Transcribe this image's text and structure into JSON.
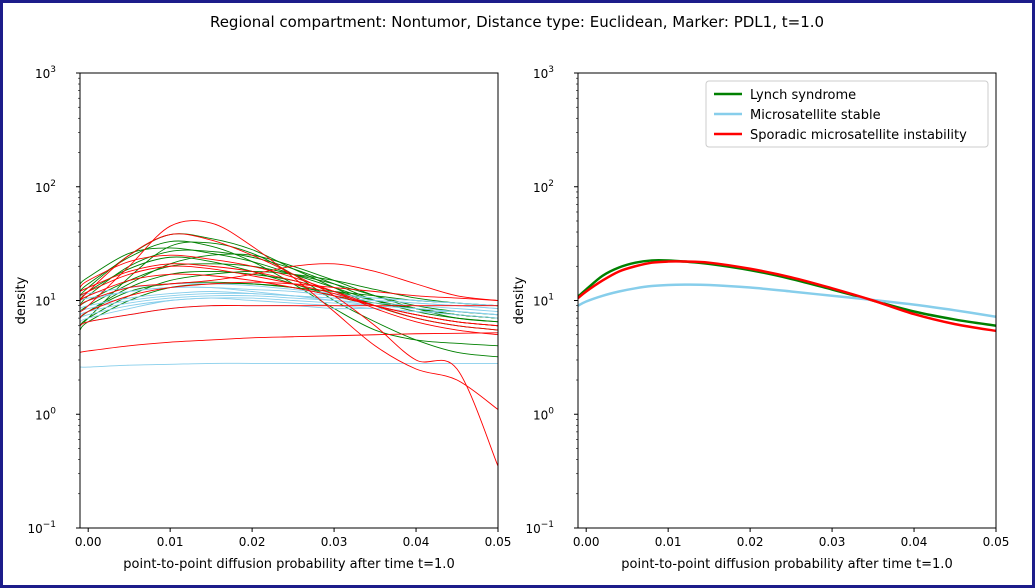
{
  "figure": {
    "title": "Regional compartment: Nontumor, Distance type: Euclidean, Marker: PDL1, t=1.0"
  },
  "colors": {
    "Lynch syndrome": "#008000",
    "Microsatellite stable": "#87ceeb",
    "Sporadic microsatellite instability": "#ff0000",
    "frame": "#1c1c8a"
  },
  "chart_data": [
    {
      "type": "line",
      "panel": "left",
      "xlabel": "point-to-point diffusion probability after time t=1.0",
      "ylabel": "density",
      "xlim": [
        -0.001,
        0.05
      ],
      "ylim": [
        0.1,
        1000
      ],
      "yscale": "log",
      "x": [
        -0.001,
        0.0,
        0.005,
        0.01,
        0.015,
        0.02,
        0.025,
        0.03,
        0.035,
        0.04,
        0.045,
        0.05
      ],
      "xticks": [
        "0.00",
        "0.01",
        "0.02",
        "0.03",
        "0.04",
        "0.05"
      ],
      "yticks": [
        "10",
        "10",
        "10",
        "10",
        "10"
      ],
      "ytick_exponents": [
        "−1",
        "0",
        "1",
        "2",
        "3"
      ],
      "grid": false,
      "legend": null,
      "series": [
        {
          "group": "Lynch syndrome",
          "values": [
            6.0,
            7.0,
            16,
            30,
            32,
            26,
            17,
            10,
            6.5,
            4.5,
            3.5,
            3.2
          ]
        },
        {
          "group": "Lynch syndrome",
          "values": [
            11,
            13,
            25,
            38,
            35,
            28,
            19,
            13,
            9,
            7,
            6,
            5.5
          ]
        },
        {
          "group": "Lynch syndrome",
          "values": [
            9,
            11,
            20,
            27,
            27,
            24,
            19,
            14,
            10,
            8,
            7,
            6.5
          ]
        },
        {
          "group": "Lynch syndrome",
          "values": [
            14,
            16,
            26,
            29,
            26,
            22,
            17,
            13,
            10,
            8.5,
            7.5,
            7
          ]
        },
        {
          "group": "Lynch syndrome",
          "values": [
            7,
            8,
            13,
            17,
            18,
            17,
            15,
            12,
            10,
            8.5,
            7.5,
            7
          ]
        },
        {
          "group": "Lynch syndrome",
          "values": [
            5.5,
            6.5,
            10,
            13,
            14,
            14,
            13,
            11,
            9.5,
            8.5,
            7.5,
            7
          ]
        },
        {
          "group": "Lynch syndrome",
          "values": [
            8,
            9,
            14,
            21,
            25,
            25,
            20,
            15,
            11,
            8.5,
            7,
            6.5
          ]
        },
        {
          "group": "Lynch syndrome",
          "values": [
            10,
            12,
            19,
            24,
            22,
            18,
            14,
            11,
            9,
            7.5,
            6.5,
            6
          ]
        },
        {
          "group": "Lynch syndrome",
          "values": [
            6,
            7,
            11,
            15,
            17,
            18,
            17,
            15,
            12.5,
            10.5,
            9.5,
            9
          ]
        },
        {
          "group": "Lynch syndrome",
          "values": [
            12,
            14,
            24,
            33,
            30,
            22,
            14,
            8.5,
            5.5,
            4.5,
            4.2,
            4
          ]
        },
        {
          "group": "Lynch syndrome",
          "values": [
            9,
            10,
            15,
            20,
            21,
            20,
            17,
            14,
            11,
            9,
            8,
            7.5
          ]
        },
        {
          "group": "Lynch syndrome",
          "values": [
            7,
            8,
            12,
            14,
            14.5,
            14,
            13,
            12,
            11,
            10,
            9.5,
            9
          ]
        },
        {
          "group": "Microsatellite stable",
          "values": [
            2.6,
            2.6,
            2.7,
            2.75,
            2.8,
            2.8,
            2.8,
            2.8,
            2.8,
            2.8,
            2.8,
            2.8
          ]
        },
        {
          "group": "Microsatellite stable",
          "values": [
            6.5,
            7,
            8.5,
            10,
            10.5,
            10.5,
            10,
            9.5,
            9,
            8.5,
            8,
            7.5
          ]
        },
        {
          "group": "Microsatellite stable",
          "values": [
            8,
            8.5,
            10,
            11,
            11.5,
            11.5,
            11,
            10.5,
            10,
            9.5,
            9,
            8.5
          ]
        },
        {
          "group": "Microsatellite stable",
          "values": [
            9,
            10,
            12,
            13,
            13,
            12.5,
            12,
            11,
            10.5,
            10,
            9.5,
            9
          ]
        },
        {
          "group": "Microsatellite stable",
          "values": [
            7,
            7.5,
            9,
            10,
            10.5,
            10,
            9.5,
            9,
            8.5,
            8,
            7.5,
            7
          ]
        },
        {
          "group": "Microsatellite stable",
          "values": [
            10,
            10.5,
            12,
            13,
            13,
            12,
            11,
            10,
            9,
            8.5,
            8,
            7.5
          ]
        },
        {
          "group": "Microsatellite stable",
          "values": [
            6,
            6.5,
            7.5,
            8.5,
            9,
            9,
            9,
            8.5,
            8.5,
            8,
            8,
            7.5
          ]
        },
        {
          "group": "Microsatellite stable",
          "values": [
            8.5,
            9,
            10.5,
            11.5,
            12,
            11.5,
            11,
            10.5,
            10,
            9.5,
            9,
            8.5
          ]
        },
        {
          "group": "Microsatellite stable",
          "values": [
            7.5,
            8,
            9.5,
            10.5,
            11,
            11,
            10.5,
            10,
            9.5,
            9,
            8.5,
            8
          ]
        },
        {
          "group": "Microsatellite stable",
          "values": [
            11,
            11.5,
            13,
            14,
            14,
            13.5,
            12.5,
            11.5,
            10.5,
            10,
            9.5,
            9
          ]
        },
        {
          "group": "Sporadic microsatellite instability",
          "values": [
            3.5,
            3.6,
            4.0,
            4.3,
            4.5,
            4.7,
            4.8,
            4.9,
            5.0,
            5.1,
            5.15,
            5.2
          ]
        },
        {
          "group": "Sporadic microsatellite instability",
          "values": [
            8,
            9,
            20,
            45,
            48,
            30,
            16,
            8,
            4,
            2.5,
            2,
            1.1
          ]
        },
        {
          "group": "Sporadic microsatellite instability",
          "values": [
            10,
            12,
            25,
            38,
            34,
            25,
            17,
            11,
            6,
            3,
            2.5,
            0.35
          ]
        },
        {
          "group": "Sporadic microsatellite instability",
          "values": [
            12,
            13,
            18,
            21,
            20,
            18,
            15,
            12,
            9,
            7,
            6,
            5.5
          ]
        },
        {
          "group": "Sporadic microsatellite instability",
          "values": [
            6,
            6.5,
            7.5,
            8.5,
            9,
            9,
            9,
            9,
            9,
            9,
            9,
            9
          ]
        },
        {
          "group": "Sporadic microsatellite instability",
          "values": [
            9,
            10,
            13,
            14,
            15,
            17,
            20,
            21,
            18,
            14,
            11,
            10
          ]
        },
        {
          "group": "Sporadic microsatellite instability",
          "values": [
            13,
            15,
            22,
            25,
            23,
            20,
            16,
            12,
            8.5,
            6.5,
            5.5,
            5
          ]
        },
        {
          "group": "Sporadic microsatellite instability",
          "values": [
            7,
            8,
            11,
            13,
            14,
            14.5,
            14,
            13,
            12,
            11,
            10.5,
            10
          ]
        },
        {
          "group": "Sporadic microsatellite instability",
          "values": [
            10,
            11,
            15,
            17,
            16.5,
            15,
            13,
            11,
            9,
            7.5,
            6.5,
            6
          ]
        },
        {
          "group": "Sporadic microsatellite instability",
          "values": [
            11,
            12,
            17,
            20,
            19,
            16.5,
            14,
            11.5,
            9,
            7.5,
            6.5,
            6
          ]
        }
      ]
    },
    {
      "type": "line",
      "panel": "right",
      "xlabel": "point-to-point diffusion probability after time t=1.0",
      "ylabel": "density",
      "xlim": [
        -0.001,
        0.05
      ],
      "ylim": [
        0.1,
        1000
      ],
      "yscale": "log",
      "x": [
        -0.001,
        0.0,
        0.002,
        0.004,
        0.006,
        0.008,
        0.01,
        0.012,
        0.015,
        0.02,
        0.025,
        0.03,
        0.035,
        0.04,
        0.045,
        0.05
      ],
      "xticks": [
        "0.00",
        "0.01",
        "0.02",
        "0.03",
        "0.04",
        "0.05"
      ],
      "yticks": [
        "10",
        "10",
        "10",
        "10",
        "10"
      ],
      "ytick_exponents": [
        "−1",
        "0",
        "1",
        "2",
        "3"
      ],
      "grid": false,
      "legend": "top-right",
      "series": [
        {
          "name": "Lynch syndrome",
          "values": [
            10.8,
            12.5,
            16.5,
            19.5,
            21.5,
            22.5,
            22.5,
            22,
            21,
            18.5,
            15.5,
            12.5,
            10,
            8,
            6.8,
            6
          ]
        },
        {
          "name": "Microsatellite stable",
          "values": [
            9,
            9.8,
            11,
            12,
            12.8,
            13.4,
            13.7,
            13.8,
            13.7,
            13,
            12,
            11,
            10.1,
            9.2,
            8.2,
            7.2
          ]
        },
        {
          "name": "Sporadic microsatellite instability",
          "values": [
            10.5,
            12,
            15,
            18,
            20,
            21.5,
            22,
            22,
            21.5,
            19,
            16,
            12.8,
            10,
            7.6,
            6.2,
            5.4
          ]
        }
      ]
    }
  ]
}
